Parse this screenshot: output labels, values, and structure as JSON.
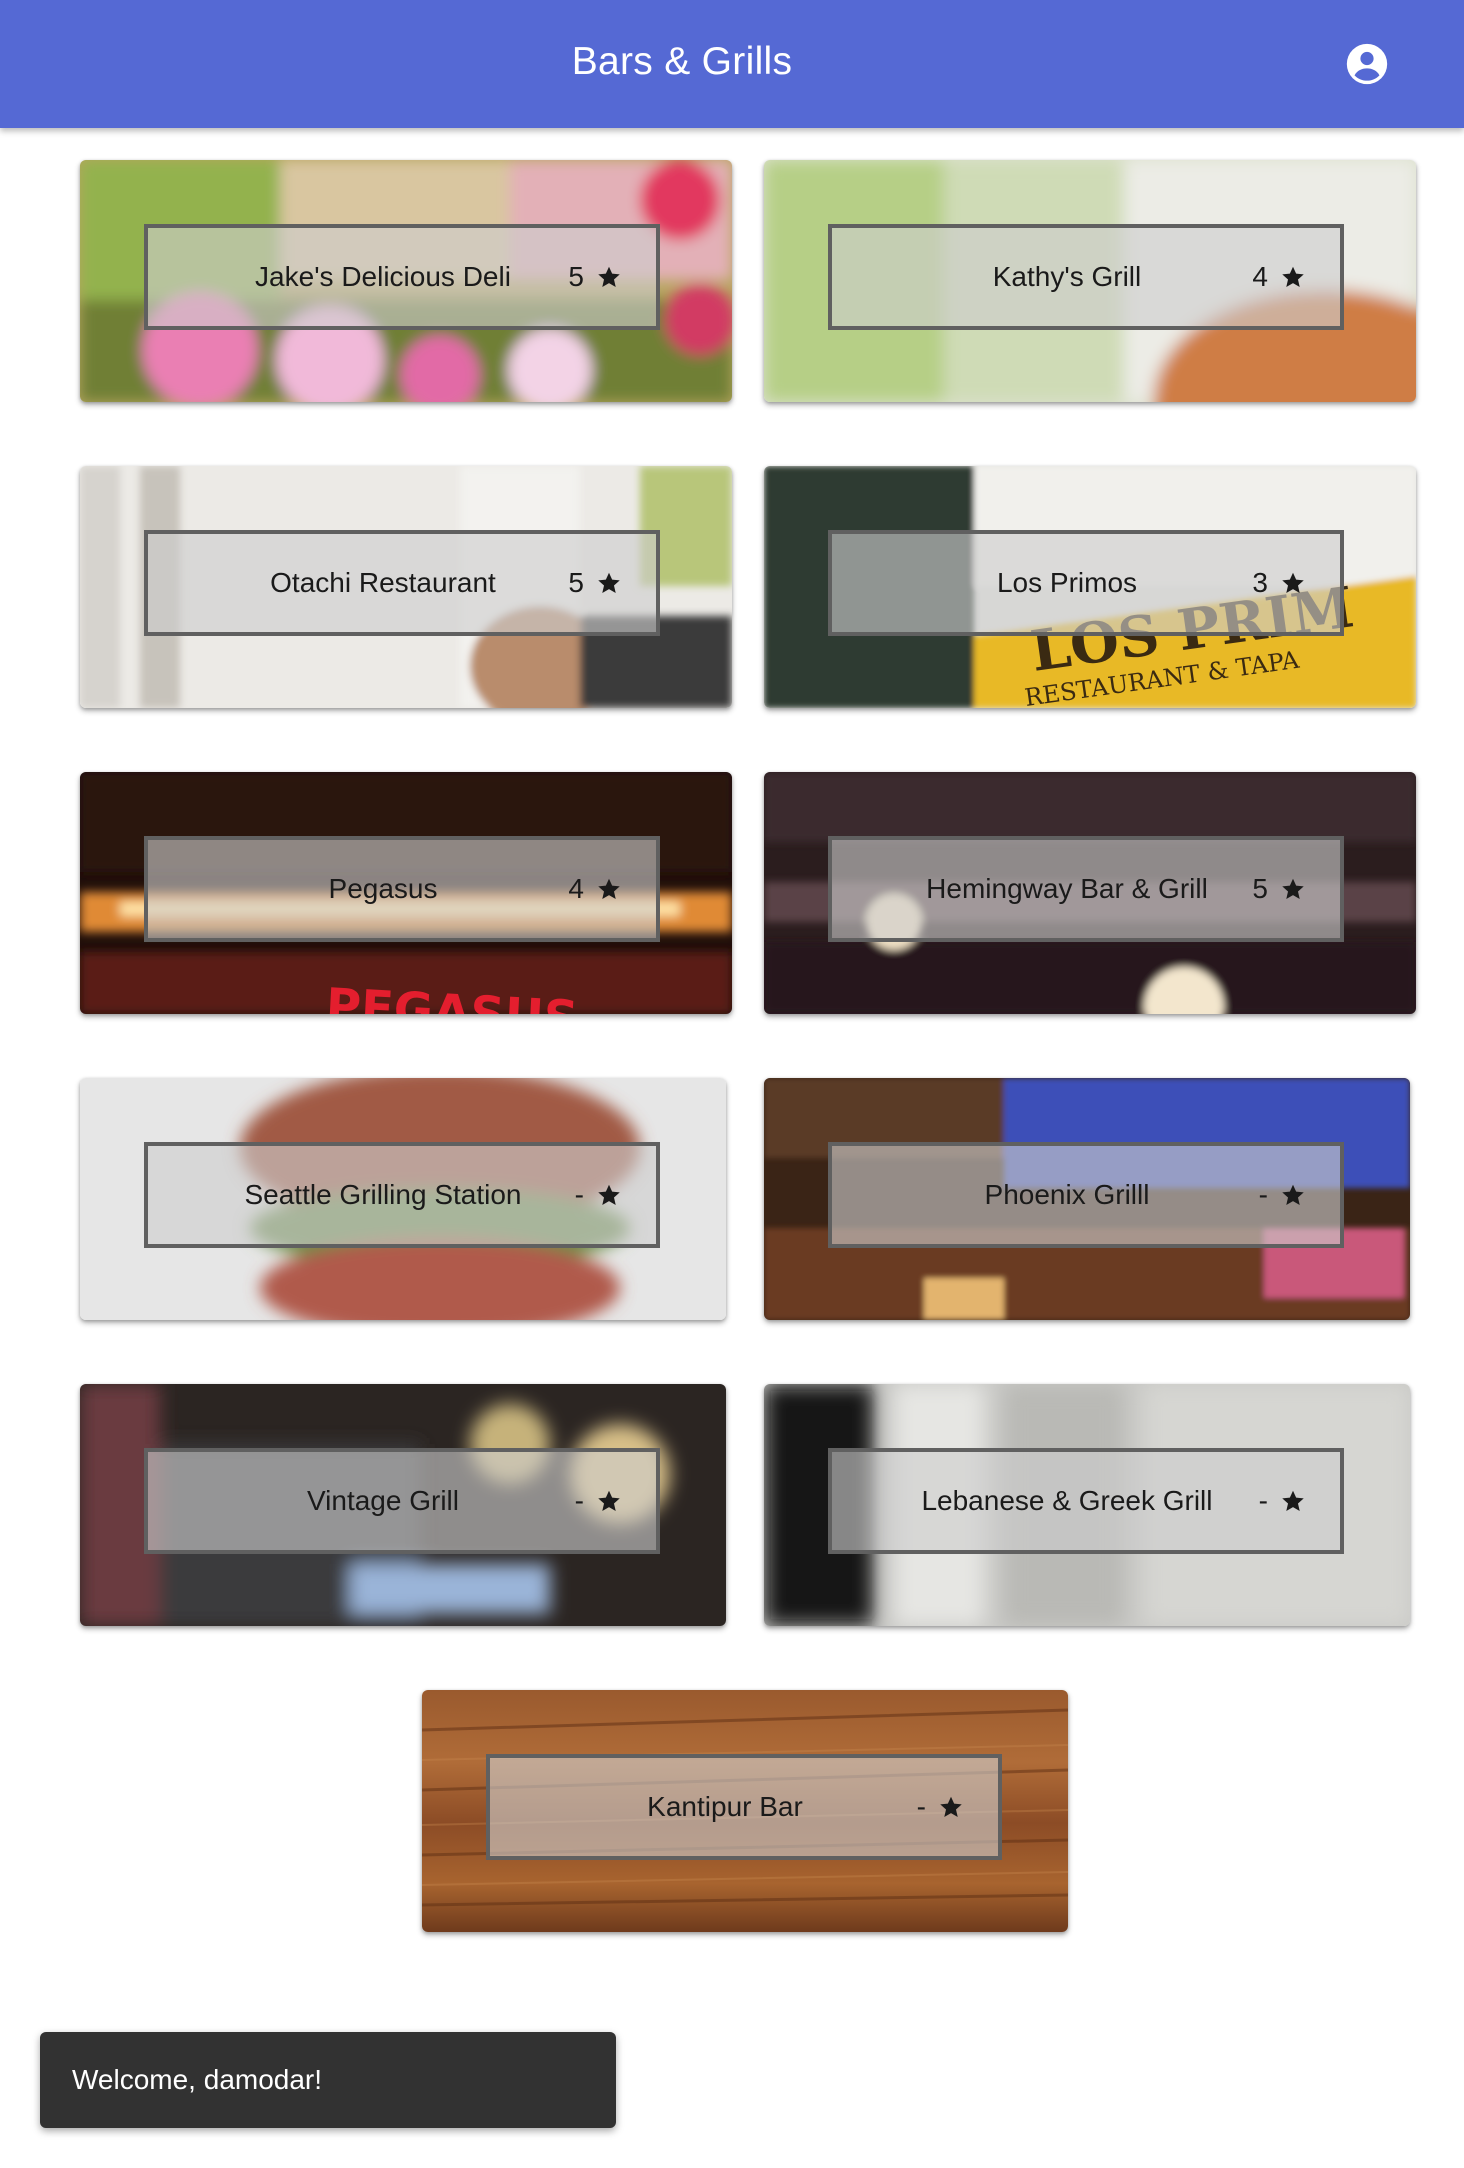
{
  "app_bar": {
    "title": "Bars & Grills",
    "account_icon": "account-circle-icon",
    "color": "#5569d4"
  },
  "restaurants": [
    {
      "name": "Jake's Delicious Deli",
      "rating": "5",
      "image": "flowers"
    },
    {
      "name": "Kathy's Grill",
      "rating": "4",
      "image": "burger-bokeh"
    },
    {
      "name": "Otachi Restaurant",
      "rating": "5",
      "image": "white-interior"
    },
    {
      "name": "Los Primos",
      "rating": "3",
      "image": "restaurant-sign"
    },
    {
      "name": "Pegasus",
      "rating": "4",
      "image": "neon-sign"
    },
    {
      "name": "Hemingway Bar & Grill",
      "rating": "5",
      "image": "bar-shelves"
    },
    {
      "name": "Seattle Grilling Station",
      "rating": "-",
      "image": "burger"
    },
    {
      "name": "Phoenix Grilll",
      "rating": "-",
      "image": "bar-interior"
    },
    {
      "name": "Vintage Grill",
      "rating": "-",
      "image": "night-bokeh"
    },
    {
      "name": "Lebanese & Greek Grill",
      "rating": "-",
      "image": "curtain"
    },
    {
      "name": "Kantipur Bar",
      "rating": "-",
      "image": "wood"
    }
  ],
  "rating_icon": "star-icon",
  "snackbar": {
    "message": "Welcome, damodar!"
  },
  "sign_texts": {
    "los_primos_1": "LOS PRIM",
    "los_primos_2": "RESTAURANT & TAPA",
    "pegasus": "PEGASUS"
  }
}
